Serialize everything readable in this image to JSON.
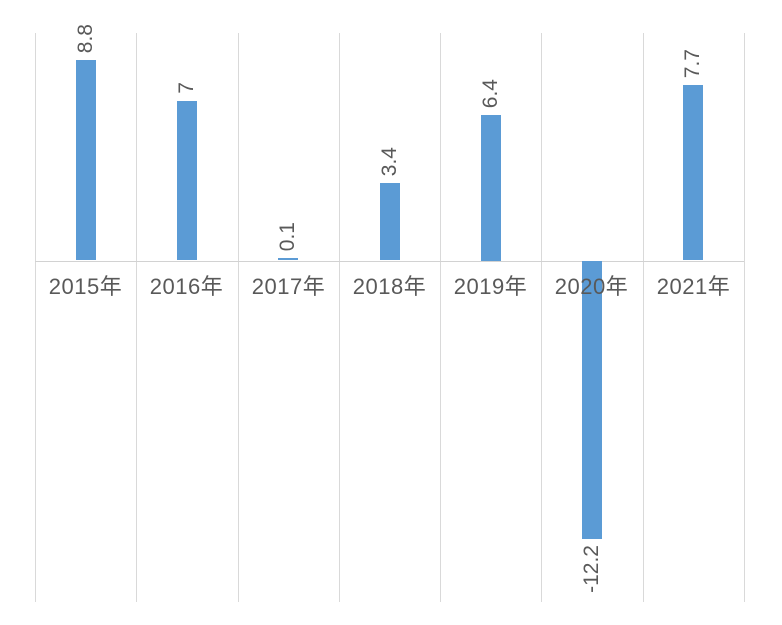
{
  "chart_data": {
    "type": "bar",
    "categories": [
      "2015年",
      "2016年",
      "2017年",
      "2018年",
      "2019年",
      "2020年",
      "2021年"
    ],
    "values": [
      8.8,
      7,
      0.1,
      3.4,
      6.4,
      -12.2,
      7.7
    ],
    "data_labels": [
      "8.8",
      "7",
      "0.1",
      "3.4",
      "6.4",
      "-12.2",
      "7.7"
    ],
    "title": "",
    "xlabel": "",
    "ylabel": "",
    "ylim": [
      -15,
      10
    ],
    "grid": "vertical-category-gridlines-only",
    "legend": "none",
    "data_label_rotation": -90,
    "data_label_position": "outside-end"
  },
  "style": {
    "bar_color": "#5B9BD5",
    "gridline_color": "#D9D9D9",
    "axis_line_color": "#D2D2D2",
    "label_color": "#595959",
    "background_color": "#FFFFFF"
  }
}
